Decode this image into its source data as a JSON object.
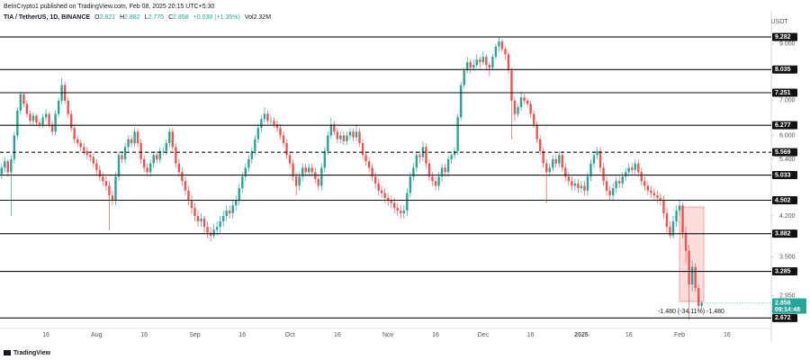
{
  "header": {
    "published": "BeInCrypto1 published on TradingView.com, Feb 08, 2025 20:15 UTC+5:30",
    "symbol": "TIA / TetherUS, 1D, BINANCE",
    "ohlc_labels": [
      "O",
      "H",
      "L",
      "C"
    ],
    "change": "+0.038 (+1.35%)",
    "volume": "Vol2.32M"
  },
  "footer": "TradingView",
  "chart_data": {
    "type": "candlestick",
    "currency": "USDT",
    "log_scale": true,
    "grid": false,
    "up_color": "#26a69a",
    "down_color": "#ef5350",
    "level_color": "#111111",
    "ylim": [
      2.5,
      10.3
    ],
    "yticks": [
      {
        "value": 9,
        "label": "9.000"
      },
      {
        "value": 7,
        "label": "7.000"
      },
      {
        "value": 6,
        "label": "6.000"
      },
      {
        "value": 5.4,
        "label": "5.400"
      },
      {
        "value": 4.2,
        "label": "4.200"
      },
      {
        "value": 3.5,
        "label": "3.500"
      },
      {
        "value": 2.95,
        "label": "2.950"
      }
    ],
    "levels": [
      9.282,
      8.035,
      7.251,
      6.277,
      5.569,
      5.033,
      4.502,
      3.882,
      3.285,
      2.672
    ],
    "level_styles": [
      "solid",
      "solid",
      "solid",
      "solid",
      "dashed",
      "solid",
      "solid",
      "solid",
      "solid",
      "solid"
    ],
    "countdown": "09:14:48",
    "measure_label": "-1.480 (-34.11%) -1,480",
    "categories": [
      null,
      null,
      null,
      null,
      null,
      null,
      null,
      null,
      null,
      null,
      null,
      null,
      null,
      null,
      "16",
      null,
      null,
      null,
      null,
      null,
      null,
      null,
      null,
      null,
      null,
      null,
      null,
      null,
      null,
      null,
      "Aug",
      null,
      null,
      null,
      null,
      null,
      null,
      null,
      null,
      null,
      null,
      null,
      null,
      null,
      null,
      "16",
      null,
      null,
      null,
      null,
      null,
      null,
      null,
      null,
      null,
      null,
      null,
      null,
      null,
      null,
      null,
      "Sep",
      null,
      null,
      null,
      null,
      null,
      null,
      null,
      null,
      null,
      null,
      null,
      null,
      null,
      null,
      "16",
      null,
      null,
      null,
      null,
      null,
      null,
      null,
      null,
      null,
      null,
      null,
      null,
      null,
      null,
      "Oct",
      null,
      null,
      null,
      null,
      null,
      null,
      null,
      null,
      null,
      null,
      null,
      null,
      null,
      null,
      "16",
      null,
      null,
      null,
      null,
      null,
      null,
      null,
      null,
      null,
      null,
      null,
      null,
      null,
      null,
      null,
      "Nov",
      null,
      null,
      null,
      null,
      null,
      null,
      null,
      null,
      null,
      null,
      null,
      null,
      null,
      null,
      "16",
      null,
      null,
      null,
      null,
      null,
      null,
      null,
      null,
      null,
      null,
      null,
      null,
      null,
      null,
      "Dec",
      null,
      null,
      null,
      null,
      null,
      null,
      null,
      null,
      null,
      null,
      null,
      null,
      null,
      null,
      "16",
      null,
      null,
      null,
      null,
      null,
      null,
      null,
      null,
      null,
      null,
      null,
      null,
      null,
      null,
      null,
      "2025",
      null,
      null,
      null,
      null,
      null,
      null,
      null,
      null,
      null,
      null,
      null,
      null,
      null,
      null,
      "16",
      null,
      null,
      null,
      null,
      null,
      null,
      null,
      null,
      null,
      null,
      null,
      null,
      null,
      null,
      null,
      "Feb",
      null,
      null,
      null,
      null,
      null,
      null,
      null,
      null,
      null,
      null,
      null,
      null,
      null,
      null,
      "16"
    ],
    "ohlc": [
      [
        5.05,
        5.3,
        4.95,
        5.2
      ],
      [
        5.2,
        5.45,
        5.1,
        5.35
      ],
      [
        5.35,
        5.4,
        5.0,
        5.1
      ],
      [
        5.1,
        5.5,
        4.2,
        5.4
      ],
      [
        5.4,
        6.1,
        5.3,
        6.0
      ],
      [
        6.0,
        6.8,
        5.9,
        6.7
      ],
      [
        6.7,
        7.3,
        6.6,
        7.2
      ],
      [
        7.2,
        7.25,
        6.8,
        6.9
      ],
      [
        6.9,
        7.0,
        6.5,
        6.6
      ],
      [
        6.6,
        6.7,
        6.3,
        6.4
      ],
      [
        6.4,
        6.65,
        6.3,
        6.55
      ],
      [
        6.55,
        6.6,
        6.25,
        6.35
      ],
      [
        6.35,
        6.45,
        6.2,
        6.3
      ],
      [
        6.3,
        6.6,
        6.2,
        6.5
      ],
      [
        6.5,
        6.75,
        6.4,
        6.6
      ],
      [
        6.6,
        6.65,
        6.2,
        6.3
      ],
      [
        6.3,
        6.4,
        6.0,
        6.1
      ],
      [
        6.1,
        6.7,
        6.0,
        6.6
      ],
      [
        6.6,
        7.1,
        6.5,
        7.0
      ],
      [
        7.0,
        7.75,
        6.9,
        7.5
      ],
      [
        7.5,
        7.6,
        6.9,
        7.0
      ],
      [
        7.0,
        7.1,
        6.5,
        6.6
      ],
      [
        6.6,
        6.7,
        6.1,
        6.2
      ],
      [
        6.2,
        6.3,
        5.8,
        5.9
      ],
      [
        5.9,
        6.0,
        5.7,
        5.8
      ],
      [
        5.8,
        5.9,
        5.6,
        5.7
      ],
      [
        5.7,
        5.8,
        5.5,
        5.6
      ],
      [
        5.6,
        5.7,
        5.4,
        5.5
      ],
      [
        5.5,
        5.6,
        5.35,
        5.45
      ],
      [
        5.45,
        5.55,
        5.2,
        5.3
      ],
      [
        5.3,
        5.4,
        5.05,
        5.15
      ],
      [
        5.15,
        5.25,
        4.9,
        5.0
      ],
      [
        5.0,
        5.1,
        4.8,
        4.9
      ],
      [
        4.9,
        5.0,
        4.7,
        4.8
      ],
      [
        4.8,
        4.9,
        3.95,
        4.6
      ],
      [
        4.6,
        4.7,
        4.4,
        4.5
      ],
      [
        4.5,
        5.1,
        4.4,
        5.0
      ],
      [
        5.0,
        5.6,
        4.9,
        5.5
      ],
      [
        5.5,
        5.6,
        5.3,
        5.4
      ],
      [
        5.4,
        5.8,
        5.3,
        5.7
      ],
      [
        5.7,
        6.0,
        5.6,
        5.9
      ],
      [
        5.9,
        6.0,
        5.7,
        5.8
      ],
      [
        5.8,
        6.2,
        5.7,
        6.1
      ],
      [
        6.1,
        6.2,
        5.7,
        5.8
      ],
      [
        5.8,
        5.9,
        5.3,
        5.4
      ],
      [
        5.4,
        5.5,
        5.1,
        5.2
      ],
      [
        5.2,
        5.3,
        5.0,
        5.1
      ],
      [
        5.1,
        5.4,
        5.0,
        5.3
      ],
      [
        5.3,
        5.6,
        5.2,
        5.5
      ],
      [
        5.5,
        5.6,
        5.3,
        5.4
      ],
      [
        5.4,
        5.7,
        5.3,
        5.6
      ],
      [
        5.6,
        5.7,
        5.5,
        5.6
      ],
      [
        5.6,
        5.9,
        5.5,
        5.8
      ],
      [
        5.8,
        6.2,
        5.7,
        6.1
      ],
      [
        6.1,
        6.2,
        5.6,
        5.7
      ],
      [
        5.7,
        5.8,
        5.2,
        5.3
      ],
      [
        5.3,
        5.4,
        5.0,
        5.1
      ],
      [
        5.1,
        5.2,
        4.8,
        4.9
      ],
      [
        4.9,
        5.0,
        4.6,
        4.7
      ],
      [
        4.7,
        4.8,
        4.4,
        4.5
      ],
      [
        4.5,
        4.6,
        4.25,
        4.35
      ],
      [
        4.35,
        4.45,
        4.1,
        4.2
      ],
      [
        4.2,
        4.3,
        4.0,
        4.1
      ],
      [
        4.1,
        4.25,
        4.0,
        4.15
      ],
      [
        4.15,
        4.2,
        3.9,
        4.0
      ],
      [
        4.0,
        4.1,
        3.8,
        3.9
      ],
      [
        3.9,
        4.0,
        3.75,
        3.85
      ],
      [
        3.85,
        4.05,
        3.8,
        3.95
      ],
      [
        3.95,
        4.1,
        3.85,
        4.0
      ],
      [
        4.0,
        4.2,
        3.9,
        4.1
      ],
      [
        4.1,
        4.3,
        4.0,
        4.2
      ],
      [
        4.2,
        4.4,
        4.1,
        4.3
      ],
      [
        4.3,
        4.4,
        4.15,
        4.25
      ],
      [
        4.25,
        4.5,
        4.15,
        4.4
      ],
      [
        4.4,
        4.6,
        4.3,
        4.5
      ],
      [
        4.5,
        4.85,
        4.4,
        4.75
      ],
      [
        4.75,
        5.1,
        4.65,
        5.0
      ],
      [
        5.0,
        5.3,
        4.9,
        5.2
      ],
      [
        5.2,
        5.5,
        5.1,
        5.4
      ],
      [
        5.4,
        5.7,
        5.3,
        5.6
      ],
      [
        5.6,
        6.0,
        5.5,
        5.9
      ],
      [
        5.9,
        6.3,
        5.8,
        6.2
      ],
      [
        6.2,
        6.55,
        6.1,
        6.45
      ],
      [
        6.45,
        6.8,
        6.35,
        6.6
      ],
      [
        6.6,
        6.7,
        6.3,
        6.4
      ],
      [
        6.4,
        6.55,
        6.3,
        6.4
      ],
      [
        6.4,
        6.5,
        6.2,
        6.3
      ],
      [
        6.3,
        6.4,
        6.1,
        6.2
      ],
      [
        6.2,
        6.3,
        5.9,
        6.0
      ],
      [
        6.0,
        6.1,
        5.7,
        5.8
      ],
      [
        5.8,
        5.9,
        5.4,
        5.5
      ],
      [
        5.5,
        5.6,
        5.2,
        5.3
      ],
      [
        5.3,
        5.4,
        4.9,
        5.0
      ],
      [
        5.0,
        5.1,
        4.6,
        4.8
      ],
      [
        4.8,
        5.1,
        4.7,
        5.0
      ],
      [
        5.0,
        5.3,
        4.9,
        5.2
      ],
      [
        5.2,
        5.3,
        5.0,
        5.1
      ],
      [
        5.1,
        5.3,
        5.0,
        5.2
      ],
      [
        5.2,
        5.3,
        5.0,
        5.1
      ],
      [
        5.1,
        5.2,
        4.85,
        4.95
      ],
      [
        4.95,
        5.05,
        4.7,
        4.8
      ],
      [
        4.8,
        5.3,
        4.7,
        5.2
      ],
      [
        5.2,
        5.7,
        5.1,
        5.6
      ],
      [
        5.6,
        6.1,
        5.5,
        6.0
      ],
      [
        6.0,
        6.5,
        5.9,
        6.3
      ],
      [
        6.3,
        6.4,
        6.0,
        6.1
      ],
      [
        6.1,
        6.2,
        5.8,
        5.9
      ],
      [
        5.9,
        6.1,
        5.8,
        6.0
      ],
      [
        6.0,
        6.1,
        5.75,
        5.85
      ],
      [
        5.85,
        6.1,
        5.75,
        6.0
      ],
      [
        6.0,
        6.2,
        5.9,
        6.1
      ],
      [
        6.1,
        6.2,
        5.85,
        5.95
      ],
      [
        5.95,
        6.3,
        5.85,
        6.1
      ],
      [
        6.1,
        6.2,
        5.7,
        5.8
      ],
      [
        5.8,
        5.9,
        5.4,
        5.5
      ],
      [
        5.5,
        5.6,
        5.25,
        5.35
      ],
      [
        5.35,
        5.45,
        5.1,
        5.2
      ],
      [
        5.2,
        5.3,
        4.9,
        5.0
      ],
      [
        5.0,
        5.1,
        4.75,
        4.85
      ],
      [
        4.85,
        4.95,
        4.6,
        4.7
      ],
      [
        4.7,
        4.8,
        4.55,
        4.65
      ],
      [
        4.65,
        4.75,
        4.45,
        4.55
      ],
      [
        4.55,
        4.65,
        4.4,
        4.5
      ],
      [
        4.5,
        4.6,
        4.35,
        4.45
      ],
      [
        4.45,
        4.55,
        4.25,
        4.35
      ],
      [
        4.35,
        4.45,
        4.2,
        4.3
      ],
      [
        4.3,
        4.4,
        4.15,
        4.25
      ],
      [
        4.25,
        4.4,
        4.15,
        4.3
      ],
      [
        4.3,
        4.75,
        4.2,
        4.65
      ],
      [
        4.65,
        5.1,
        4.55,
        5.0
      ],
      [
        5.0,
        5.3,
        4.9,
        5.2
      ],
      [
        5.2,
        5.6,
        5.1,
        5.5
      ],
      [
        5.5,
        5.6,
        5.3,
        5.45
      ],
      [
        5.45,
        5.85,
        5.35,
        5.7
      ],
      [
        5.7,
        5.8,
        5.2,
        5.3
      ],
      [
        5.3,
        5.4,
        4.9,
        5.0
      ],
      [
        5.0,
        5.1,
        4.8,
        4.9
      ],
      [
        4.9,
        5.0,
        4.7,
        4.8
      ],
      [
        4.8,
        5.1,
        4.7,
        5.0
      ],
      [
        5.0,
        5.3,
        4.9,
        5.2
      ],
      [
        5.2,
        5.3,
        5.0,
        5.1
      ],
      [
        5.1,
        5.5,
        5.0,
        5.4
      ],
      [
        5.4,
        5.6,
        5.3,
        5.5
      ],
      [
        5.5,
        5.7,
        5.4,
        5.6
      ],
      [
        5.6,
        6.6,
        5.5,
        6.5
      ],
      [
        6.5,
        7.6,
        6.4,
        7.5
      ],
      [
        7.5,
        8.1,
        7.4,
        8.0
      ],
      [
        8.0,
        8.5,
        7.9,
        8.3
      ],
      [
        8.3,
        8.4,
        7.9,
        8.1
      ],
      [
        8.1,
        8.4,
        8.0,
        8.2
      ],
      [
        8.2,
        8.6,
        8.1,
        8.4
      ],
      [
        8.4,
        8.5,
        8.1,
        8.3
      ],
      [
        8.3,
        8.7,
        8.2,
        8.5
      ],
      [
        8.5,
        8.6,
        8.0,
        8.2
      ],
      [
        8.2,
        8.3,
        7.8,
        8.1
      ],
      [
        8.1,
        8.6,
        8.0,
        8.5
      ],
      [
        8.5,
        9.0,
        8.4,
        8.9
      ],
      [
        8.9,
        9.3,
        8.7,
        9.1
      ],
      [
        9.1,
        9.2,
        8.7,
        8.8
      ],
      [
        8.8,
        8.9,
        8.4,
        8.6
      ],
      [
        8.6,
        8.7,
        7.9,
        8.0
      ],
      [
        8.0,
        8.1,
        5.9,
        7.0
      ],
      [
        7.0,
        7.1,
        6.4,
        6.6
      ],
      [
        6.6,
        6.9,
        6.5,
        6.8
      ],
      [
        6.8,
        7.3,
        6.7,
        7.1
      ],
      [
        7.1,
        7.2,
        6.9,
        7.0
      ],
      [
        7.0,
        7.1,
        6.8,
        6.9
      ],
      [
        6.9,
        7.0,
        6.5,
        6.6
      ],
      [
        6.6,
        6.7,
        6.2,
        6.3
      ],
      [
        6.3,
        6.4,
        5.8,
        5.9
      ],
      [
        5.9,
        6.0,
        5.5,
        5.6
      ],
      [
        5.6,
        5.7,
        5.2,
        5.3
      ],
      [
        5.3,
        5.4,
        4.45,
        5.1
      ],
      [
        5.1,
        5.3,
        5.0,
        5.2
      ],
      [
        5.2,
        5.5,
        5.1,
        5.4
      ],
      [
        5.4,
        5.5,
        5.2,
        5.3
      ],
      [
        5.3,
        5.6,
        5.2,
        5.5
      ],
      [
        5.5,
        5.6,
        5.1,
        5.2
      ],
      [
        5.2,
        5.3,
        4.9,
        5.0
      ],
      [
        5.0,
        5.1,
        4.8,
        4.9
      ],
      [
        4.9,
        5.0,
        4.7,
        4.8
      ],
      [
        4.8,
        4.95,
        4.7,
        4.85
      ],
      [
        4.85,
        4.95,
        4.65,
        4.75
      ],
      [
        4.75,
        4.9,
        4.65,
        4.8
      ],
      [
        4.8,
        4.9,
        4.6,
        4.7
      ],
      [
        4.7,
        5.1,
        4.6,
        5.0
      ],
      [
        5.0,
        5.4,
        4.9,
        5.3
      ],
      [
        5.3,
        5.6,
        5.2,
        5.5
      ],
      [
        5.5,
        5.7,
        5.4,
        5.6
      ],
      [
        5.6,
        5.7,
        5.1,
        5.2
      ],
      [
        5.2,
        5.3,
        4.8,
        4.9
      ],
      [
        4.9,
        5.0,
        4.6,
        4.7
      ],
      [
        4.7,
        4.8,
        4.5,
        4.6
      ],
      [
        4.6,
        4.85,
        4.5,
        4.75
      ],
      [
        4.75,
        5.0,
        4.65,
        4.9
      ],
      [
        4.9,
        5.0,
        4.75,
        4.85
      ],
      [
        4.85,
        5.1,
        4.75,
        5.0
      ],
      [
        5.0,
        5.2,
        4.9,
        5.1
      ],
      [
        5.1,
        5.3,
        5.0,
        5.2
      ],
      [
        5.2,
        5.3,
        5.05,
        5.15
      ],
      [
        5.15,
        5.4,
        5.05,
        5.3
      ],
      [
        5.3,
        5.4,
        5.0,
        5.1
      ],
      [
        5.1,
        5.2,
        4.8,
        4.9
      ],
      [
        4.9,
        5.0,
        4.7,
        4.8
      ],
      [
        4.8,
        4.9,
        4.6,
        4.7
      ],
      [
        4.7,
        4.8,
        4.55,
        4.65
      ],
      [
        4.65,
        4.75,
        4.5,
        4.6
      ],
      [
        4.6,
        4.7,
        4.45,
        4.55
      ],
      [
        4.55,
        4.65,
        4.4,
        4.5
      ],
      [
        4.5,
        4.6,
        4.15,
        4.25
      ],
      [
        4.25,
        4.35,
        3.9,
        4.0
      ],
      [
        4.0,
        4.1,
        3.8,
        3.85
      ],
      [
        3.85,
        4.2,
        3.8,
        4.1
      ],
      [
        4.1,
        4.4,
        4.0,
        4.3
      ],
      [
        4.3,
        4.5,
        4.2,
        4.4
      ],
      [
        4.4,
        4.45,
        3.8,
        3.9
      ],
      [
        3.9,
        4.0,
        3.4,
        3.6
      ],
      [
        3.6,
        3.7,
        2.65,
        3.1
      ],
      [
        3.1,
        3.45,
        3.0,
        3.35
      ],
      [
        3.35,
        3.4,
        3.0,
        3.05
      ],
      [
        3.05,
        3.1,
        2.78,
        2.82
      ],
      [
        2.821,
        2.882,
        2.775,
        2.858
      ],
      null,
      null,
      null,
      null,
      null,
      null,
      null,
      null
    ]
  }
}
